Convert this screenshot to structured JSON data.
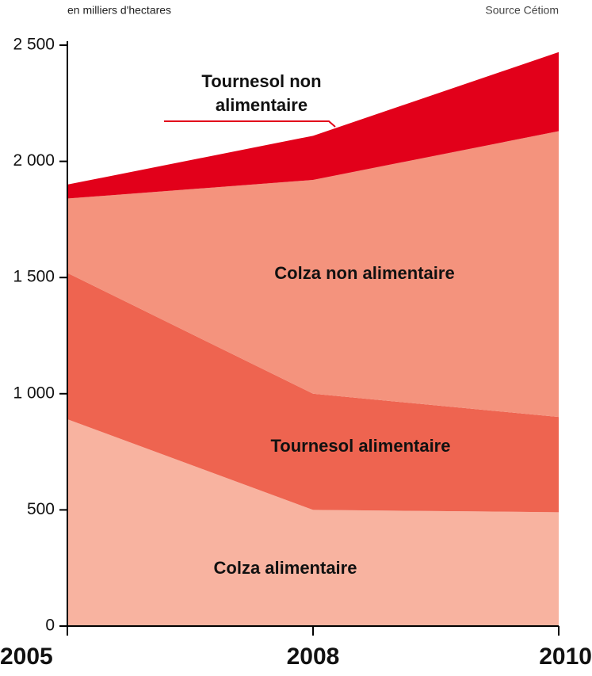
{
  "chart_data": {
    "type": "stacked_area",
    "subtitle": "en milliers d'hectares",
    "source": "Source Cétiom",
    "categories": [
      "2005",
      "2008",
      "2010"
    ],
    "series": [
      {
        "name": "Colza alimentaire",
        "color": "#f8b3a0",
        "values": [
          890,
          500,
          490
        ]
      },
      {
        "name": "Tournesol alimentaire",
        "color": "#ee6450",
        "values": [
          630,
          500,
          410
        ]
      },
      {
        "name": "Colza non alimentaire",
        "color": "#f4937d",
        "values": [
          320,
          920,
          1230
        ]
      },
      {
        "name": "Tournesol non alimentaire",
        "color": "#e2001a",
        "values": [
          60,
          190,
          340
        ]
      }
    ],
    "ylim": [
      0,
      2500
    ],
    "yticks": [
      0,
      500,
      {
        "value": 1000,
        "label": "1 000"
      },
      {
        "value": 1500,
        "label": "1 500"
      },
      {
        "value": 2000,
        "label": "2 000"
      },
      {
        "value": 2500,
        "label": "2 500"
      }
    ]
  }
}
